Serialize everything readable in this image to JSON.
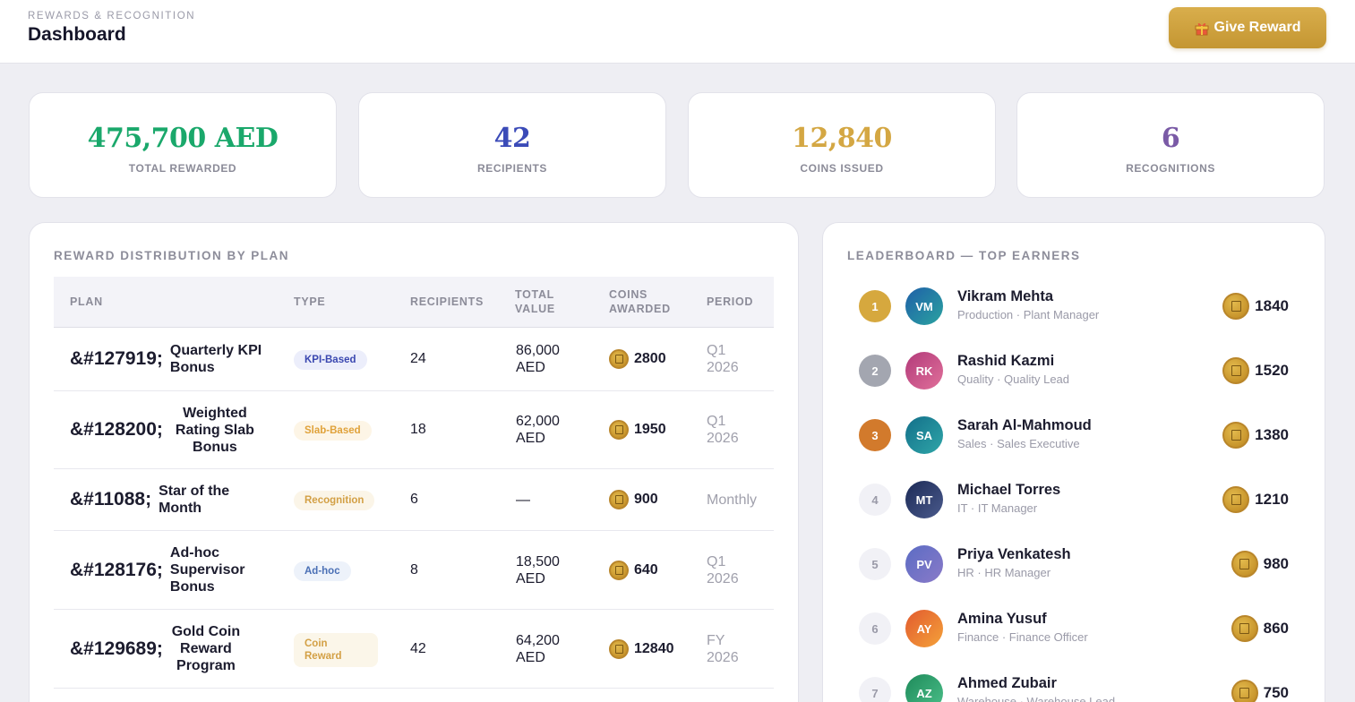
{
  "header": {
    "eyebrow": "REWARDS & RECOGNITION",
    "title": "Dashboard",
    "give_reward_label": "Give Reward"
  },
  "stats": [
    {
      "value": "475,700 AED",
      "label": "TOTAL REWARDED",
      "color": "#1aa86b"
    },
    {
      "value": "42",
      "label": "RECIPIENTS",
      "color": "#3b4bb8"
    },
    {
      "value": "12,840",
      "label": "COINS ISSUED",
      "color": "#d4a743"
    },
    {
      "value": "6",
      "label": "RECOGNITIONS",
      "color": "#7a5aa6"
    }
  ],
  "distribution": {
    "title": "REWARD DISTRIBUTION BY PLAN",
    "columns": {
      "plan": "PLAN",
      "type": "TYPE",
      "recipients": "RECIPIENTS",
      "total_value": "TOTAL VALUE",
      "coins_awarded": "COINS AWARDED",
      "period": "PERIOD"
    },
    "rows": [
      {
        "code": "&#127919;",
        "plan": "Quarterly KPI Bonus",
        "type": "KPI-Based",
        "recipients": "24",
        "value": "86,000 AED",
        "coins": "2800",
        "period": "Q1 2026"
      },
      {
        "code": "&#128200;",
        "plan": "Weighted Rating Slab Bonus",
        "type": "Slab-Based",
        "recipients": "18",
        "value": "62,000 AED",
        "coins": "1950",
        "period": "Q1 2026"
      },
      {
        "code": "&#11088;",
        "plan": "Star of the Month",
        "type": "Recognition",
        "recipients": "6",
        "value": "—",
        "coins": "900",
        "period": "Monthly"
      },
      {
        "code": "&#128176;",
        "plan": "Ad-hoc Supervisor Bonus",
        "type": "Ad-hoc",
        "recipients": "8",
        "value": "18,500 AED",
        "coins": "640",
        "period": "Q1 2026"
      },
      {
        "code": "&#129689;",
        "plan": "Gold Coin Reward Program",
        "type": "Coin Reward",
        "recipients": "42",
        "value": "64,200 AED",
        "coins": "12840",
        "period": "FY 2026"
      }
    ],
    "type_colors": {
      "KPI-Based": {
        "fg": "#3a47b0",
        "bg": "#eceefb"
      },
      "Slab-Based": {
        "fg": "#e0a23a",
        "bg": "#fdf5e6"
      },
      "Recognition": {
        "fg": "#d3a045",
        "bg": "#fbf5e8"
      },
      "Ad-hoc": {
        "fg": "#4a6fb5",
        "bg": "#edf2fa"
      },
      "Coin Reward": {
        "fg": "#d3a045",
        "bg": "#fbf6e9"
      }
    }
  },
  "leaderboard": {
    "title": "LEADERBOARD — TOP EARNERS",
    "entries": [
      {
        "rank": "1",
        "initials": "VM",
        "name": "Vikram Mehta",
        "subtitle": "Production · Plant Manager",
        "coins": "1840",
        "rank_bg": "#d6a83e",
        "rank_fg": "#ffffff",
        "avatar_from": "#1f5fa8",
        "avatar_to": "#2aa3a0"
      },
      {
        "rank": "2",
        "initials": "RK",
        "name": "Rashid Kazmi",
        "subtitle": "Quality · Quality Lead",
        "coins": "1520",
        "rank_bg": "#a3a6b0",
        "rank_fg": "#ffffff",
        "avatar_from": "#b23a7a",
        "avatar_to": "#e0709a"
      },
      {
        "rank": "3",
        "initials": "SA",
        "name": "Sarah Al-Mahmoud",
        "subtitle": "Sales · Sales Executive",
        "coins": "1380",
        "rank_bg": "#d27a2c",
        "rank_fg": "#ffffff",
        "avatar_from": "#136f8a",
        "avatar_to": "#2fa6a8"
      },
      {
        "rank": "4",
        "initials": "MT",
        "name": "Michael Torres",
        "subtitle": "IT · IT Manager",
        "coins": "1210",
        "rank_bg": "#f1f1f6",
        "rank_fg": "#9a9aa8",
        "avatar_from": "#1c2a56",
        "avatar_to": "#4a5a8c"
      },
      {
        "rank": "5",
        "initials": "PV",
        "name": "Priya Venkatesh",
        "subtitle": "HR · HR Manager",
        "coins": "980",
        "rank_bg": "#f1f1f6",
        "rank_fg": "#9a9aa8",
        "avatar_from": "#5b6cc4",
        "avatar_to": "#8a7ac8"
      },
      {
        "rank": "6",
        "initials": "AY",
        "name": "Amina Yusuf",
        "subtitle": "Finance · Finance Officer",
        "coins": "860",
        "rank_bg": "#f1f1f6",
        "rank_fg": "#9a9aa8",
        "avatar_from": "#e25a2e",
        "avatar_to": "#f4a23a"
      },
      {
        "rank": "7",
        "initials": "AZ",
        "name": "Ahmed Zubair",
        "subtitle": "Warehouse · Warehouse Lead",
        "coins": "750",
        "rank_bg": "#f1f1f6",
        "rank_fg": "#9a9aa8",
        "avatar_from": "#1e8a5a",
        "avatar_to": "#4cc08a"
      }
    ]
  }
}
